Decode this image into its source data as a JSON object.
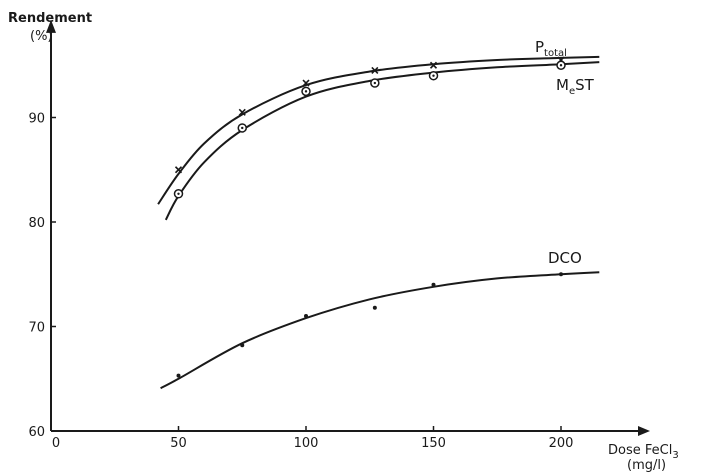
{
  "chart_data": {
    "type": "line",
    "ylabel": "Rendement",
    "ylabel_unit": "(%)",
    "xlabel": "Dose FeCl",
    "xlabel_sub": "3",
    "xlabel_unit": "(mg/l)",
    "xlim": [
      0,
      220
    ],
    "ylim": [
      60,
      98
    ],
    "x_ticks": [
      0,
      50,
      100,
      150,
      200
    ],
    "y_ticks": [
      60,
      70,
      80,
      90
    ],
    "grid": false,
    "legend": "inline labels at curve ends",
    "series": [
      {
        "name": "Ptotal",
        "label_main": "P",
        "label_sub": "total",
        "marker": "x",
        "points": [
          [
            50,
            85
          ],
          [
            75,
            90.5
          ],
          [
            100,
            93.3
          ],
          [
            127,
            94.5
          ],
          [
            150,
            95
          ],
          [
            200,
            95.5
          ]
        ],
        "curve": [
          [
            42,
            81.7
          ],
          [
            50,
            84.6
          ],
          [
            60,
            87.5
          ],
          [
            75,
            90.3
          ],
          [
            100,
            93.1
          ],
          [
            125,
            94.4
          ],
          [
            150,
            95.1
          ],
          [
            175,
            95.5
          ],
          [
            200,
            95.7
          ],
          [
            215,
            95.8
          ]
        ]
      },
      {
        "name": "MeST",
        "label_main": "M",
        "label_sub": "e",
        "label_rest": "ST",
        "marker": "circle",
        "points": [
          [
            50,
            82.7
          ],
          [
            75,
            89
          ],
          [
            100,
            92.5
          ],
          [
            127,
            93.3
          ],
          [
            150,
            94
          ],
          [
            200,
            95
          ]
        ],
        "curve": [
          [
            45,
            80.2
          ],
          [
            50,
            82.5
          ],
          [
            60,
            85.7
          ],
          [
            75,
            88.8
          ],
          [
            100,
            92
          ],
          [
            125,
            93.5
          ],
          [
            150,
            94.3
          ],
          [
            175,
            94.8
          ],
          [
            200,
            95.1
          ],
          [
            215,
            95.3
          ]
        ]
      },
      {
        "name": "DCO",
        "label_main": "DCO",
        "marker": "dot",
        "points": [
          [
            50,
            65.3
          ],
          [
            75,
            68.2
          ],
          [
            100,
            71
          ],
          [
            127,
            71.8
          ],
          [
            150,
            74
          ],
          [
            200,
            75
          ]
        ],
        "curve": [
          [
            43,
            64.1
          ],
          [
            50,
            65
          ],
          [
            75,
            68.4
          ],
          [
            100,
            70.8
          ],
          [
            125,
            72.6
          ],
          [
            150,
            73.8
          ],
          [
            175,
            74.6
          ],
          [
            200,
            75
          ],
          [
            215,
            75.2
          ]
        ]
      }
    ]
  }
}
